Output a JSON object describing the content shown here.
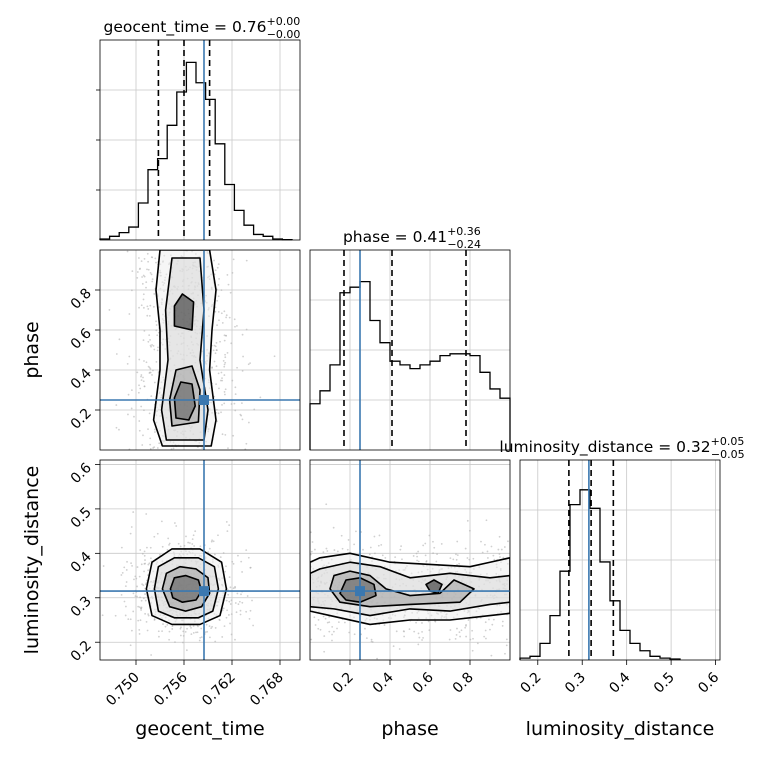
{
  "chart_data": {
    "type": "corner",
    "parameters": [
      "geocent_time",
      "phase",
      "luminosity_distance"
    ],
    "truths": {
      "geocent_time": 0.7585,
      "phase": 0.25,
      "luminosity_distance": 0.315
    },
    "colors": {
      "truth": "#3b78b0",
      "hist": "#000000",
      "grid": "#c8c8c8",
      "scatter": "#b0b0b0"
    },
    "grid": true,
    "diagonal": [
      {
        "param": "geocent_time",
        "title": {
          "main": "geocent_time = 0.76",
          "plus": "+0.00",
          "minus": "−0.00"
        },
        "xlim": [
          0.7455,
          0.7705
        ],
        "quantiles": [
          0.7528,
          0.756,
          0.7592
        ],
        "bins": [
          0.7455,
          0.7467,
          0.7479,
          0.7491,
          0.7503,
          0.7515,
          0.7527,
          0.7539,
          0.7551,
          0.7563,
          0.7575,
          0.7587,
          0.7599,
          0.7611,
          0.7623,
          0.7635,
          0.7647,
          0.7659,
          0.7671,
          0.7683,
          0.7695
        ],
        "counts": [
          0.5,
          2,
          4,
          7,
          20,
          38,
          44,
          62,
          80,
          96,
          85,
          76,
          52,
          30,
          16,
          8,
          3,
          2,
          0.5,
          0.2
        ],
        "ymax": 100
      },
      {
        "param": "phase",
        "title": {
          "main": "phase = 0.41",
          "plus": "+0.36",
          "minus": "−0.24"
        },
        "xlim": [
          0.0,
          1.0
        ],
        "quantiles": [
          0.17,
          0.41,
          0.78
        ],
        "bins": [
          0.0,
          0.05,
          0.1,
          0.15,
          0.2,
          0.25,
          0.3,
          0.35,
          0.4,
          0.45,
          0.5,
          0.55,
          0.6,
          0.65,
          0.7,
          0.75,
          0.8,
          0.85,
          0.9,
          0.95,
          1.0
        ],
        "counts": [
          25,
          32,
          46,
          85,
          88,
          91,
          70,
          58,
          48,
          46,
          44,
          46,
          48,
          51,
          52,
          52,
          51,
          42,
          33,
          28
        ],
        "ymax": 100
      },
      {
        "param": "luminosity_distance",
        "title": {
          "main": "luminosity_distance = 0.32",
          "plus": "+0.05",
          "minus": "−0.05"
        },
        "xlim": [
          0.16,
          0.61
        ],
        "quantiles": [
          0.27,
          0.32,
          0.37
        ],
        "bins": [
          0.16,
          0.1825,
          0.205,
          0.2275,
          0.25,
          0.2725,
          0.295,
          0.3175,
          0.34,
          0.3625,
          0.385,
          0.4075,
          0.43,
          0.4525,
          0.475,
          0.4975,
          0.52
        ],
        "counts": [
          1,
          2,
          9,
          24,
          48,
          84,
          92,
          82,
          53,
          32,
          16,
          9,
          5,
          2,
          1,
          0.5
        ],
        "ymax": 100
      }
    ],
    "pairs": [
      {
        "x": "geocent_time",
        "y": "phase",
        "xlim": [
          0.7455,
          0.7705
        ],
        "ylim": [
          0.0,
          1.0
        ],
        "center": [
          0.756,
          0.25
        ],
        "spread": [
          0.0022,
          0.1
        ],
        "contours": [
          [
            [
              0.7533,
              0.02
            ],
            [
              0.7522,
              0.15
            ],
            [
              0.753,
              0.4
            ],
            [
              0.753,
              0.6
            ],
            [
              0.7525,
              0.8
            ],
            [
              0.753,
              1.0
            ],
            [
              0.7592,
              1.0
            ],
            [
              0.76,
              0.8
            ],
            [
              0.7595,
              0.6
            ],
            [
              0.7592,
              0.4
            ],
            [
              0.76,
              0.15
            ],
            [
              0.7594,
              0.02
            ]
          ],
          [
            [
              0.7538,
              0.05
            ],
            [
              0.7532,
              0.2
            ],
            [
              0.754,
              0.45
            ],
            [
              0.7537,
              0.7
            ],
            [
              0.7545,
              0.96
            ],
            [
              0.758,
              0.96
            ],
            [
              0.7585,
              0.7
            ],
            [
              0.758,
              0.45
            ],
            [
              0.759,
              0.2
            ],
            [
              0.7585,
              0.05
            ]
          ],
          [
            [
              0.7545,
              0.12
            ],
            [
              0.7542,
              0.25
            ],
            [
              0.755,
              0.4
            ],
            [
              0.757,
              0.42
            ],
            [
              0.758,
              0.3
            ],
            [
              0.7578,
              0.14
            ]
          ],
          [
            [
              0.755,
              0.16
            ],
            [
              0.7548,
              0.26
            ],
            [
              0.7556,
              0.34
            ],
            [
              0.757,
              0.33
            ],
            [
              0.7574,
              0.22
            ],
            [
              0.7566,
              0.15
            ]
          ],
          [
            [
              0.7548,
              0.62
            ],
            [
              0.7548,
              0.72
            ],
            [
              0.7558,
              0.78
            ],
            [
              0.7572,
              0.74
            ],
            [
              0.757,
              0.6
            ]
          ]
        ]
      },
      {
        "x": "geocent_time",
        "y": "luminosity_distance",
        "xlim": [
          0.7455,
          0.7705
        ],
        "ylim": [
          0.16,
          0.61
        ],
        "center": [
          0.756,
          0.315
        ],
        "spread": [
          0.0022,
          0.035
        ],
        "contours": [
          [
            [
              0.7513,
              0.32
            ],
            [
              0.752,
              0.38
            ],
            [
              0.7545,
              0.41
            ],
            [
              0.758,
              0.41
            ],
            [
              0.7607,
              0.38
            ],
            [
              0.7613,
              0.32
            ],
            [
              0.7605,
              0.26
            ],
            [
              0.758,
              0.24
            ],
            [
              0.7545,
              0.24
            ],
            [
              0.752,
              0.26
            ]
          ],
          [
            [
              0.7523,
              0.32
            ],
            [
              0.7528,
              0.37
            ],
            [
              0.7548,
              0.39
            ],
            [
              0.7578,
              0.39
            ],
            [
              0.7598,
              0.37
            ],
            [
              0.7603,
              0.32
            ],
            [
              0.7596,
              0.27
            ],
            [
              0.7578,
              0.255
            ],
            [
              0.7548,
              0.255
            ],
            [
              0.7528,
              0.27
            ]
          ],
          [
            [
              0.7533,
              0.32
            ],
            [
              0.7538,
              0.355
            ],
            [
              0.7555,
              0.37
            ],
            [
              0.7575,
              0.365
            ],
            [
              0.759,
              0.345
            ],
            [
              0.7592,
              0.31
            ],
            [
              0.7582,
              0.28
            ],
            [
              0.7562,
              0.27
            ],
            [
              0.7542,
              0.28
            ]
          ],
          [
            [
              0.7543,
              0.32
            ],
            [
              0.7548,
              0.345
            ],
            [
              0.7562,
              0.35
            ],
            [
              0.7578,
              0.34
            ],
            [
              0.7582,
              0.315
            ],
            [
              0.7575,
              0.295
            ],
            [
              0.7558,
              0.29
            ],
            [
              0.7546,
              0.3
            ]
          ]
        ]
      },
      {
        "x": "phase",
        "y": "luminosity_distance",
        "xlim": [
          0.0,
          1.0
        ],
        "ylim": [
          0.16,
          0.61
        ],
        "center": [
          0.45,
          0.315
        ],
        "spread": [
          0.3,
          0.035
        ],
        "contours": [
          [
            [
              0.0,
              0.27
            ],
            [
              0.1,
              0.26
            ],
            [
              0.3,
              0.24
            ],
            [
              0.5,
              0.25
            ],
            [
              0.7,
              0.25
            ],
            [
              0.9,
              0.26
            ],
            [
              1.0,
              0.265
            ],
            [
              1.0,
              0.39
            ],
            [
              0.9,
              0.38
            ],
            [
              0.8,
              0.37
            ],
            [
              0.6,
              0.375
            ],
            [
              0.4,
              0.38
            ],
            [
              0.2,
              0.4
            ],
            [
              0.05,
              0.39
            ],
            [
              0.0,
              0.38
            ]
          ],
          [
            [
              0.0,
              0.28
            ],
            [
              0.12,
              0.275
            ],
            [
              0.3,
              0.26
            ],
            [
              0.5,
              0.275
            ],
            [
              0.7,
              0.27
            ],
            [
              0.9,
              0.285
            ],
            [
              1.0,
              0.29
            ],
            [
              1.0,
              0.35
            ],
            [
              0.9,
              0.345
            ],
            [
              0.7,
              0.355
            ],
            [
              0.5,
              0.345
            ],
            [
              0.35,
              0.37
            ],
            [
              0.2,
              0.38
            ],
            [
              0.05,
              0.365
            ],
            [
              0.0,
              0.355
            ]
          ],
          [
            [
              0.1,
              0.32
            ],
            [
              0.12,
              0.35
            ],
            [
              0.2,
              0.36
            ],
            [
              0.3,
              0.35
            ],
            [
              0.38,
              0.32
            ],
            [
              0.5,
              0.305
            ],
            [
              0.65,
              0.31
            ],
            [
              0.72,
              0.34
            ],
            [
              0.82,
              0.32
            ],
            [
              0.75,
              0.29
            ],
            [
              0.5,
              0.285
            ],
            [
              0.3,
              0.28
            ],
            [
              0.15,
              0.29
            ]
          ],
          [
            [
              0.15,
              0.31
            ],
            [
              0.18,
              0.34
            ],
            [
              0.25,
              0.345
            ],
            [
              0.32,
              0.33
            ],
            [
              0.33,
              0.305
            ],
            [
              0.25,
              0.29
            ],
            [
              0.18,
              0.295
            ]
          ],
          [
            [
              0.58,
              0.33
            ],
            [
              0.62,
              0.34
            ],
            [
              0.66,
              0.33
            ],
            [
              0.64,
              0.31
            ],
            [
              0.6,
              0.315
            ]
          ]
        ]
      }
    ],
    "axes": {
      "geocent_time": {
        "label": "geocent_time",
        "ticks": [
          0.75,
          0.756,
          0.762,
          0.768
        ],
        "tick_labels": [
          "0.750",
          "0.756",
          "0.762",
          "0.768"
        ]
      },
      "phase": {
        "label": "phase",
        "ticks": [
          0.2,
          0.4,
          0.6,
          0.8
        ],
        "tick_labels": [
          "0.2",
          "0.4",
          "0.6",
          "0.8"
        ]
      },
      "luminosity_distance": {
        "label": "luminosity_distance",
        "ticks": [
          0.2,
          0.3,
          0.4,
          0.5,
          0.6
        ],
        "tick_labels": [
          "0.2",
          "0.3",
          "0.4",
          "0.5",
          "0.6"
        ]
      }
    }
  }
}
